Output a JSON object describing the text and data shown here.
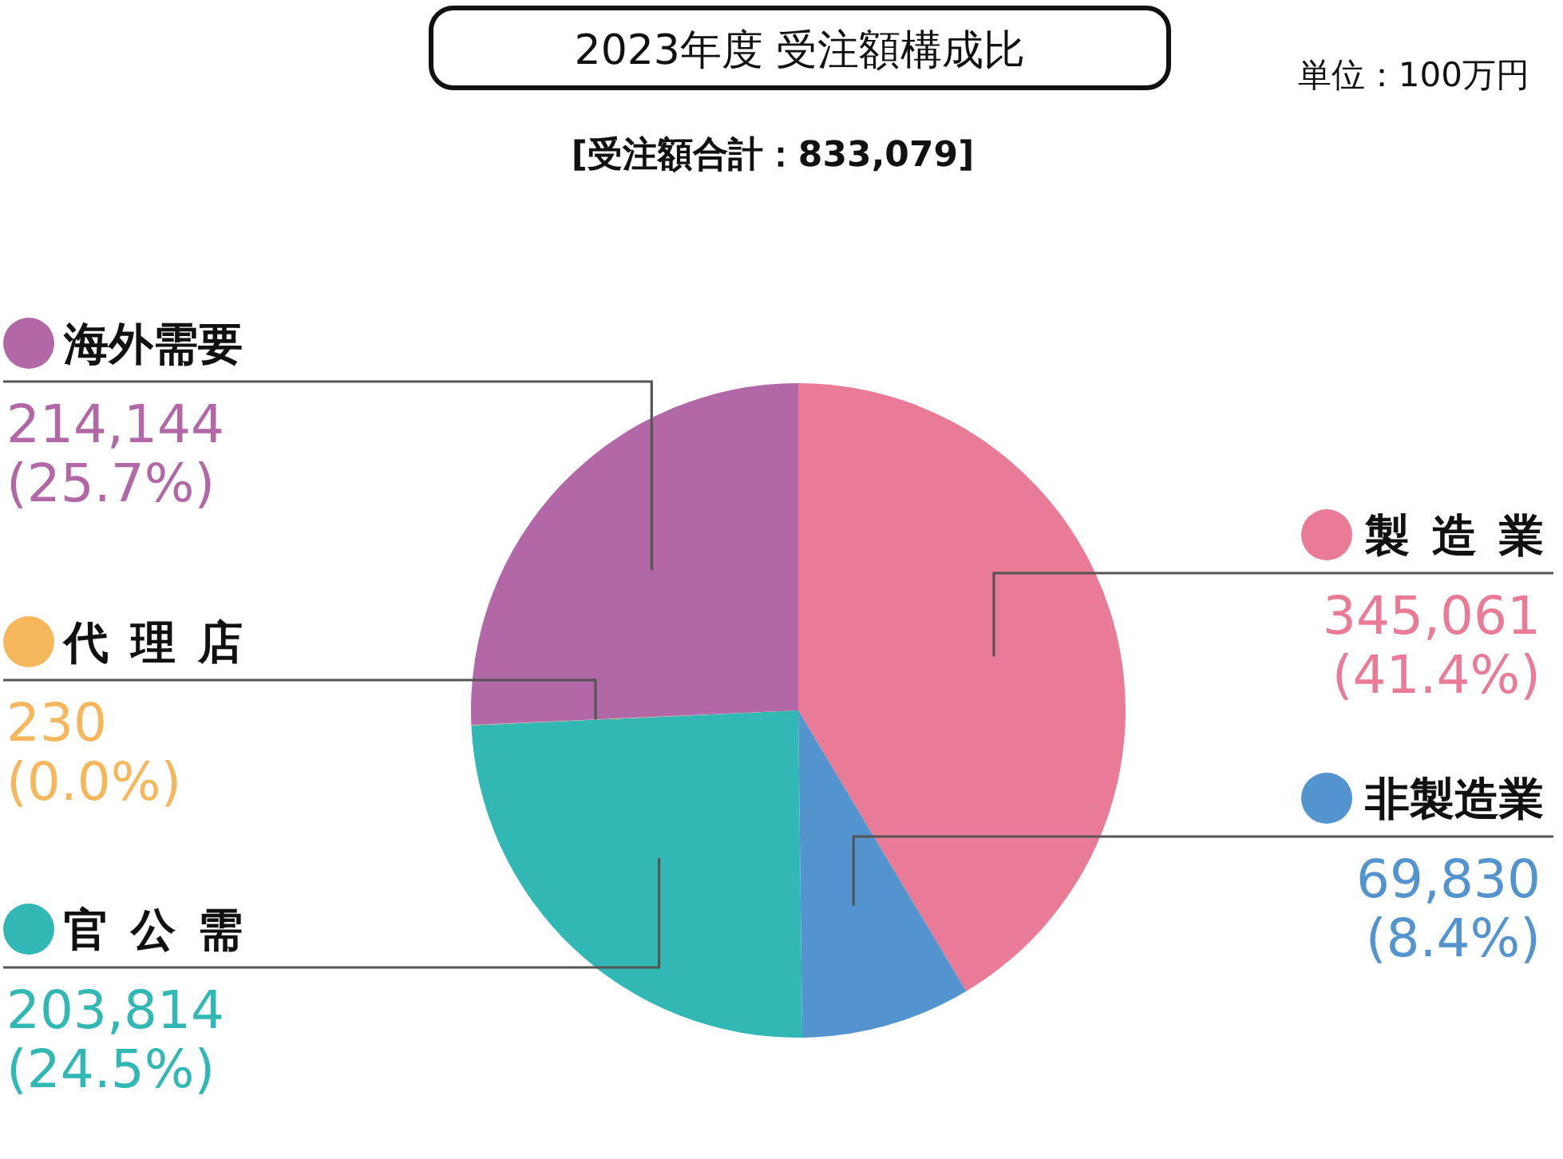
{
  "chart_data": {
    "type": "pie",
    "title": "2023年度 受注額構成比",
    "subtitle": "[受注額合計：833,079]",
    "annotations": [
      "単位：100万円"
    ],
    "categories": [
      "製造業",
      "非製造業",
      "官公需",
      "代理店",
      "海外需要"
    ],
    "values": [
      345061,
      69830,
      203814,
      230,
      214144
    ],
    "colors": [
      "#ea7b97",
      "#5394cf",
      "#31b8b5",
      "#f6b75c",
      "#b267a6"
    ],
    "value_labels": [
      "345,061\n(41.4%)",
      "69,830\n(8.4%)",
      "203,814\n(24.5%)",
      "230\n(0.0%)",
      "214,144\n(25.7%)"
    ],
    "legend": "left"
  }
}
